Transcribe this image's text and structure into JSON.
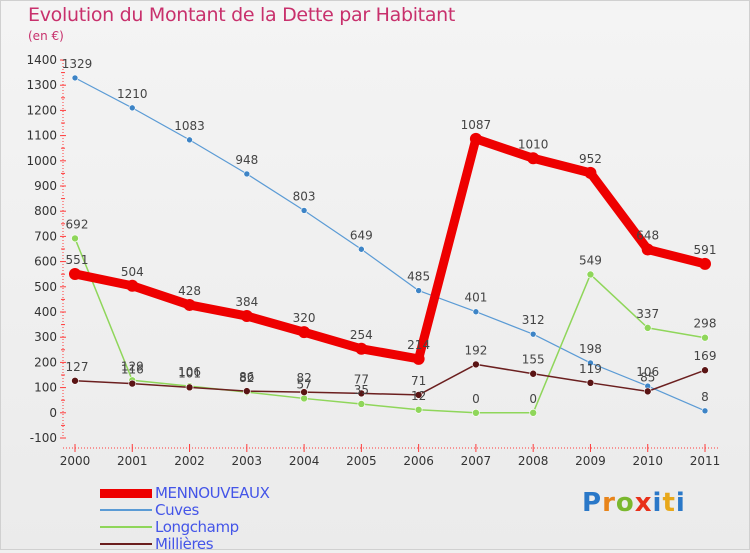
{
  "chart_data": {
    "type": "line",
    "title": "Evolution du Montant de la Dette par Habitant",
    "subtitle": "(en €)",
    "categories": [
      "2000",
      "2001",
      "2002",
      "2003",
      "2004",
      "2005",
      "2006",
      "2007",
      "2008",
      "2009",
      "2010",
      "2011"
    ],
    "ylim": [
      -100,
      1400
    ],
    "yticks": [
      -100,
      0,
      100,
      200,
      300,
      400,
      500,
      600,
      700,
      800,
      900,
      1000,
      1100,
      1200,
      1300,
      1400
    ],
    "grid": false,
    "legend_position": "bottom-left",
    "series": [
      {
        "name": "MENNOUVEAUX",
        "color": "#ee0000",
        "values": [
          551,
          504,
          428,
          384,
          320,
          254,
          214,
          1087,
          1010,
          952,
          648,
          591
        ]
      },
      {
        "name": "Cuves",
        "color": "#5b9bd5",
        "values": [
          1329,
          1210,
          1083,
          948,
          803,
          649,
          485,
          401,
          312,
          198,
          106,
          8
        ]
      },
      {
        "name": "Longchamp",
        "color": "#8fd65a",
        "values": [
          692,
          129,
          106,
          82,
          57,
          35,
          12,
          0,
          0,
          549,
          337,
          298
        ]
      },
      {
        "name": "Millières",
        "color": "#6b1f1f",
        "values": [
          127,
          116,
          101,
          86,
          82,
          77,
          71,
          192,
          155,
          119,
          85,
          169
        ]
      }
    ]
  },
  "logo": {
    "letters": [
      "P",
      "r",
      "o",
      "x",
      "i",
      "t",
      "i"
    ]
  }
}
